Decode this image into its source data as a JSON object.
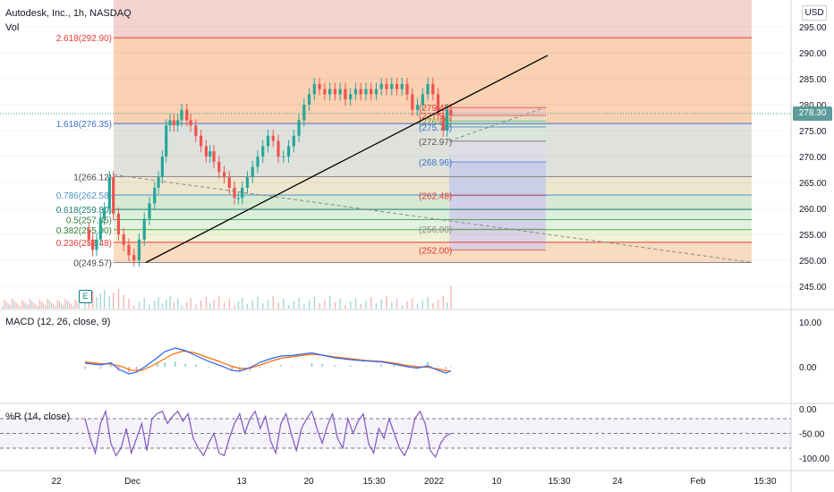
{
  "header": {
    "symbol_title": "Autodesk, Inc., 1h, NASDAQ",
    "volume_label": "Vol",
    "currency": "USD",
    "last_price": "278.30"
  },
  "earnings_badge": "E",
  "panes": {
    "macd_label": "MACD (12, 26, close, 9)",
    "williams_label": "%R (14, close)"
  },
  "colors": {
    "up": "#26a69a",
    "down": "#ef5350",
    "fib_upper_fill": "#f8c8a8",
    "fib_mid_fill": "#d8ddd6",
    "macd_line": "#2962ff",
    "signal_line": "#ff6d00",
    "wr_line": "#7e57c2",
    "trendline": "#000000"
  },
  "chart_data": [
    {
      "type": "candlestick",
      "pane": "price",
      "symbol": "ADSK",
      "interval": "1h",
      "exchange": "NASDAQ",
      "currency": "USD",
      "last_price": 278.3,
      "ylim": [
        244,
        298
      ],
      "yticks": [
        "295.00",
        "290.00",
        "285.00",
        "280.00",
        "275.00",
        "270.00",
        "265.00",
        "260.00",
        "255.00",
        "250.00",
        "245.00"
      ],
      "xticks": [
        "22",
        "Dec",
        "13",
        "20",
        "15:30",
        "2022",
        "10",
        "15:30",
        "24",
        "Feb",
        "15:30"
      ],
      "close_path": [
        [
          0,
          256
        ],
        [
          3,
          254
        ],
        [
          6,
          252
        ],
        [
          9,
          254
        ],
        [
          12,
          258
        ],
        [
          15,
          260
        ],
        [
          19,
          266
        ],
        [
          22,
          259
        ],
        [
          26,
          255
        ],
        [
          30,
          253
        ],
        [
          34,
          251
        ],
        [
          38,
          250
        ],
        [
          42,
          254
        ],
        [
          46,
          258
        ],
        [
          50,
          261
        ],
        [
          54,
          264
        ],
        [
          57,
          266
        ],
        [
          60,
          270
        ],
        [
          63,
          276
        ],
        [
          66,
          277
        ],
        [
          69,
          276
        ],
        [
          72,
          277
        ],
        [
          75,
          279
        ],
        [
          79,
          277
        ],
        [
          82,
          276
        ],
        [
          86,
          274
        ],
        [
          90,
          272
        ],
        [
          94,
          270
        ],
        [
          97,
          271
        ],
        [
          100,
          269
        ],
        [
          104,
          267
        ],
        [
          108,
          266
        ],
        [
          112,
          264
        ],
        [
          116,
          262
        ],
        [
          119,
          262
        ],
        [
          122,
          264
        ],
        [
          126,
          266
        ],
        [
          130,
          268
        ],
        [
          134,
          270
        ],
        [
          138,
          272
        ],
        [
          142,
          274
        ],
        [
          146,
          273
        ],
        [
          150,
          270
        ],
        [
          154,
          270
        ],
        [
          158,
          272
        ],
        [
          162,
          274
        ],
        [
          166,
          277
        ],
        [
          170,
          280
        ],
        [
          174,
          282
        ],
        [
          178,
          284
        ],
        [
          182,
          283
        ],
        [
          186,
          282
        ],
        [
          190,
          283
        ],
        [
          194,
          282
        ],
        [
          198,
          283
        ],
        [
          202,
          281
        ],
        [
          206,
          282
        ],
        [
          210,
          283
        ],
        [
          214,
          282
        ],
        [
          218,
          283
        ],
        [
          222,
          282
        ],
        [
          226,
          283
        ],
        [
          230,
          284
        ],
        [
          234,
          283
        ],
        [
          238,
          284
        ],
        [
          242,
          283
        ],
        [
          246,
          284
        ],
        [
          250,
          282
        ],
        [
          254,
          279
        ],
        [
          258,
          280
        ],
        [
          262,
          282
        ],
        [
          266,
          284
        ],
        [
          270,
          282
        ],
        [
          274,
          278
        ],
        [
          278,
          275
        ],
        [
          281,
          279
        ],
        [
          284,
          278
        ]
      ],
      "fib_retracement_left": {
        "levels": [
          {
            "ratio": "2.618",
            "price": 292.9,
            "label": "2.618(292.90)"
          },
          {
            "ratio": "1.618",
            "price": 276.35,
            "label": "1.618(276.35)"
          },
          {
            "ratio": "1",
            "price": 266.12,
            "label": "1(266.12)"
          },
          {
            "ratio": "0.786",
            "price": 262.58,
            "label": "0.786(262.58)"
          },
          {
            "ratio": "0.618",
            "price": 259.8,
            "label": "0.618(259.80)"
          },
          {
            "ratio": "0.5",
            "price": 257.85,
            "label": "0.5(257.85)"
          },
          {
            "ratio": "0.382",
            "price": 255.9,
            "label": "0.382(255.90)"
          },
          {
            "ratio": "0.236",
            "price": 253.48,
            "label": "0.236(253.48)"
          },
          {
            "ratio": "0",
            "price": 249.57,
            "label": "0(249.57)"
          }
        ]
      },
      "fib_retracement_right": {
        "levels": [
          {
            "price": 279.45,
            "label": "(279.45)"
          },
          {
            "price": 277.92,
            "label": "(277.92)"
          },
          {
            "price": 276.85,
            "label": "(276.85)"
          },
          {
            "price": 275.7,
            "label": "(275.70)"
          },
          {
            "price": 272.97,
            "label": "(272.97)"
          },
          {
            "price": 268.96,
            "label": "(268.96)"
          },
          {
            "price": 262.48,
            "label": "(262.48)"
          },
          {
            "price": 256.0,
            "label": "(256.00)"
          },
          {
            "price": 252.0,
            "label": "(252.00)"
          }
        ]
      }
    },
    {
      "type": "line",
      "pane": "macd",
      "title": "MACD (12, 26, close, 9)",
      "ylim": [
        -2.5,
        12
      ],
      "yticks": [
        "10.00",
        "0.00"
      ],
      "macd": [
        [
          0,
          0.8
        ],
        [
          12,
          0.4
        ],
        [
          20,
          0.9
        ],
        [
          26,
          -0.5
        ],
        [
          34,
          -1.6
        ],
        [
          40,
          -1.2
        ],
        [
          48,
          0.3
        ],
        [
          56,
          2.0
        ],
        [
          62,
          3.4
        ],
        [
          70,
          4.2
        ],
        [
          78,
          3.6
        ],
        [
          86,
          2.5
        ],
        [
          96,
          1.2
        ],
        [
          106,
          0.2
        ],
        [
          114,
          -0.8
        ],
        [
          120,
          -1.0
        ],
        [
          128,
          -0.2
        ],
        [
          136,
          1.0
        ],
        [
          144,
          1.8
        ],
        [
          152,
          2.4
        ],
        [
          160,
          2.5
        ],
        [
          168,
          2.8
        ],
        [
          176,
          3.1
        ],
        [
          184,
          2.6
        ],
        [
          194,
          2.0
        ],
        [
          206,
          1.6
        ],
        [
          218,
          1.3
        ],
        [
          230,
          1.1
        ],
        [
          240,
          0.6
        ],
        [
          250,
          0.0
        ],
        [
          258,
          -0.3
        ],
        [
          266,
          0.2
        ],
        [
          274,
          -0.8
        ],
        [
          280,
          -1.4
        ],
        [
          284,
          -0.9
        ]
      ],
      "signal": [
        [
          0,
          1.1
        ],
        [
          12,
          0.7
        ],
        [
          20,
          0.6
        ],
        [
          28,
          0.1
        ],
        [
          36,
          -0.8
        ],
        [
          44,
          -0.8
        ],
        [
          52,
          0.2
        ],
        [
          60,
          1.5
        ],
        [
          68,
          2.8
        ],
        [
          76,
          3.5
        ],
        [
          84,
          3.2
        ],
        [
          94,
          2.2
        ],
        [
          104,
          1.2
        ],
        [
          112,
          0.3
        ],
        [
          120,
          -0.4
        ],
        [
          128,
          -0.3
        ],
        [
          136,
          0.4
        ],
        [
          144,
          1.2
        ],
        [
          152,
          1.9
        ],
        [
          160,
          2.2
        ],
        [
          168,
          2.5
        ],
        [
          176,
          2.8
        ],
        [
          184,
          2.6
        ],
        [
          194,
          2.2
        ],
        [
          206,
          1.8
        ],
        [
          218,
          1.4
        ],
        [
          230,
          1.2
        ],
        [
          240,
          0.8
        ],
        [
          250,
          0.3
        ],
        [
          258,
          0.0
        ],
        [
          266,
          -0.1
        ],
        [
          274,
          -0.5
        ],
        [
          280,
          -0.9
        ],
        [
          284,
          -1.0
        ]
      ]
    },
    {
      "type": "line",
      "pane": "williams_r",
      "title": "%R (14, close)",
      "ylim": [
        -102,
        2
      ],
      "yticks": [
        "0.00",
        "-50.00",
        "-100.00"
      ],
      "band_levels": [
        -20,
        -50,
        -80
      ],
      "series": [
        [
          0,
          -20
        ],
        [
          4,
          -60
        ],
        [
          8,
          -90
        ],
        [
          12,
          -30
        ],
        [
          16,
          -5
        ],
        [
          20,
          -70
        ],
        [
          24,
          -95
        ],
        [
          28,
          -80
        ],
        [
          32,
          -40
        ],
        [
          36,
          -90
        ],
        [
          40,
          -60
        ],
        [
          44,
          -30
        ],
        [
          48,
          -85
        ],
        [
          52,
          -20
        ],
        [
          56,
          -10
        ],
        [
          60,
          -5
        ],
        [
          64,
          -30
        ],
        [
          68,
          -15
        ],
        [
          72,
          -5
        ],
        [
          76,
          -25
        ],
        [
          80,
          -10
        ],
        [
          84,
          -60
        ],
        [
          88,
          -80
        ],
        [
          92,
          -95
        ],
        [
          96,
          -70
        ],
        [
          100,
          -50
        ],
        [
          104,
          -90
        ],
        [
          108,
          -95
        ],
        [
          112,
          -60
        ],
        [
          116,
          -30
        ],
        [
          120,
          -10
        ],
        [
          124,
          -50
        ],
        [
          128,
          -20
        ],
        [
          132,
          -5
        ],
        [
          136,
          -40
        ],
        [
          140,
          -15
        ],
        [
          144,
          -65
        ],
        [
          148,
          -90
        ],
        [
          152,
          -30
        ],
        [
          156,
          -10
        ],
        [
          160,
          -50
        ],
        [
          164,
          -85
        ],
        [
          168,
          -40
        ],
        [
          172,
          -20
        ],
        [
          176,
          -5
        ],
        [
          180,
          -40
        ],
        [
          184,
          -70
        ],
        [
          188,
          -35
        ],
        [
          192,
          -10
        ],
        [
          196,
          -60
        ],
        [
          200,
          -80
        ],
        [
          204,
          -20
        ],
        [
          208,
          -50
        ],
        [
          212,
          -25
        ],
        [
          216,
          -10
        ],
        [
          220,
          -70
        ],
        [
          224,
          -90
        ],
        [
          228,
          -40
        ],
        [
          232,
          -60
        ],
        [
          236,
          -20
        ],
        [
          240,
          -50
        ],
        [
          244,
          -80
        ],
        [
          248,
          -95
        ],
        [
          252,
          -70
        ],
        [
          256,
          -20
        ],
        [
          260,
          -5
        ],
        [
          264,
          -30
        ],
        [
          268,
          -85
        ],
        [
          272,
          -98
        ],
        [
          276,
          -70
        ],
        [
          280,
          -55
        ],
        [
          284,
          -50
        ]
      ]
    }
  ]
}
